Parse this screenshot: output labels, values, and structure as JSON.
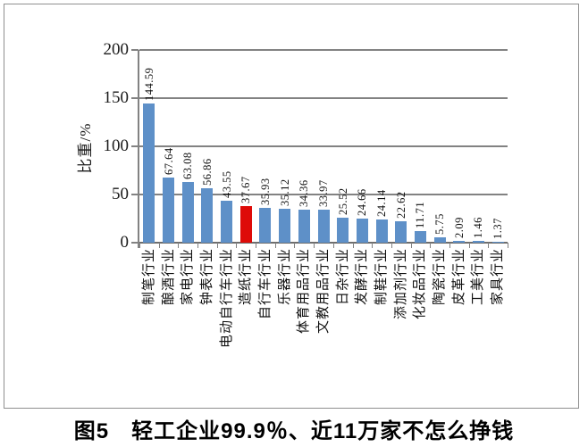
{
  "figure": {
    "caption": "图5　轻工企业99.9％、近11万家不怎么挣钱"
  },
  "chart_data": {
    "type": "bar",
    "title": "",
    "xlabel": "",
    "ylabel": "比重/%",
    "ylim": [
      0,
      200
    ],
    "yticks": [
      0,
      50,
      100,
      150,
      200
    ],
    "grid": true,
    "legend_position": "none",
    "value_labels_rotated": true,
    "categories": [
      "制笔行业",
      "酿酒行业",
      "家电行业",
      "钟表行业",
      "电动自行车行业",
      "造纸行业",
      "自行车行业",
      "乐器行业",
      "体育用品行业",
      "文教用品行业",
      "日杂行业",
      "发酵行业",
      "制鞋行业",
      "添加剂行业",
      "化妆品行业",
      "陶瓷行业",
      "皮革行业",
      "工美行业",
      "家具行业"
    ],
    "values": [
      144.59,
      67.64,
      63.08,
      56.86,
      43.55,
      37.67,
      35.93,
      35.12,
      34.36,
      33.97,
      25.52,
      24.66,
      24.14,
      22.62,
      11.71,
      5.75,
      2.09,
      1.46,
      1.37
    ],
    "highlight_index": 5,
    "colors": {
      "bar": "#5e90c8",
      "highlight_bar": "#de0b08",
      "gridline": "#828282",
      "baseline": "#6e6e6e",
      "axis": "#828282",
      "text": "#111111",
      "frame_border": "#8f8f8f"
    }
  }
}
